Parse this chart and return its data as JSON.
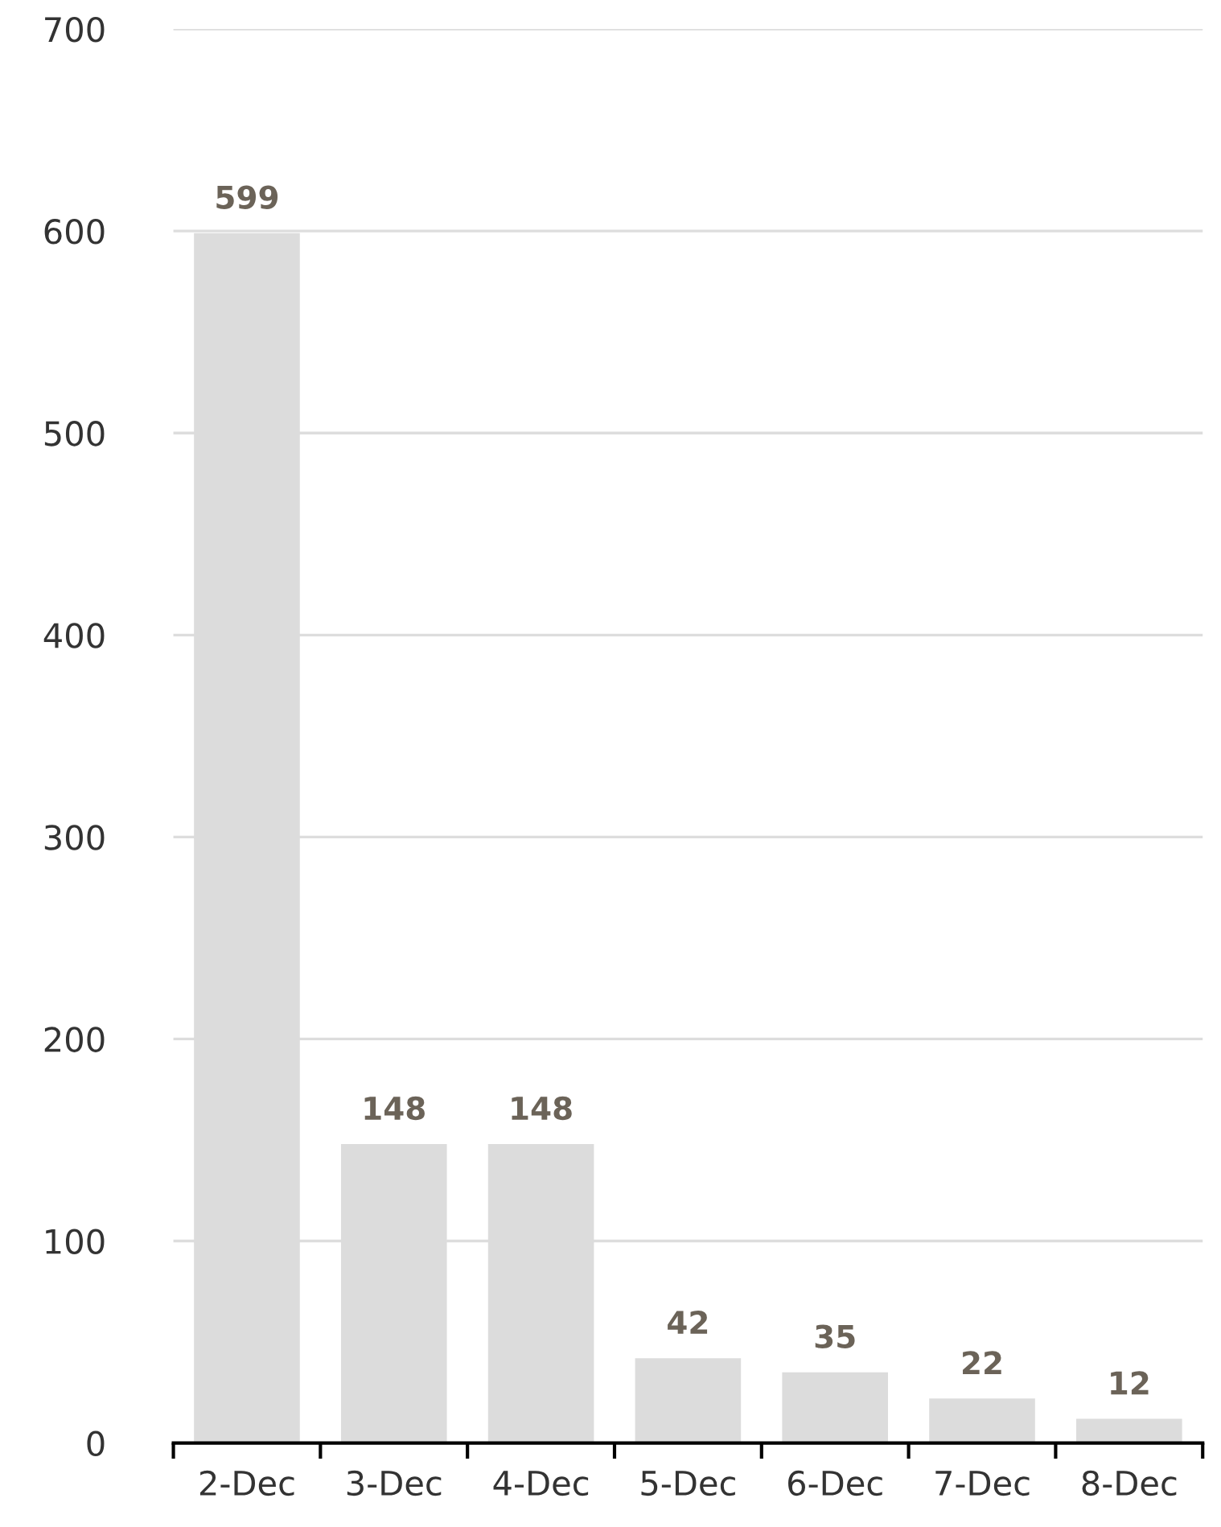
{
  "chart_data": {
    "type": "bar",
    "categories": [
      "2-Dec",
      "3-Dec",
      "4-Dec",
      "5-Dec",
      "6-Dec",
      "7-Dec",
      "8-Dec"
    ],
    "values": [
      599,
      148,
      148,
      42,
      35,
      22,
      12
    ],
    "color": "#dcdcdc",
    "ylim": [
      0,
      700
    ],
    "yticks": [
      0,
      100,
      200,
      300,
      400,
      500,
      600,
      700
    ],
    "grid": "y",
    "data_labels": true
  }
}
